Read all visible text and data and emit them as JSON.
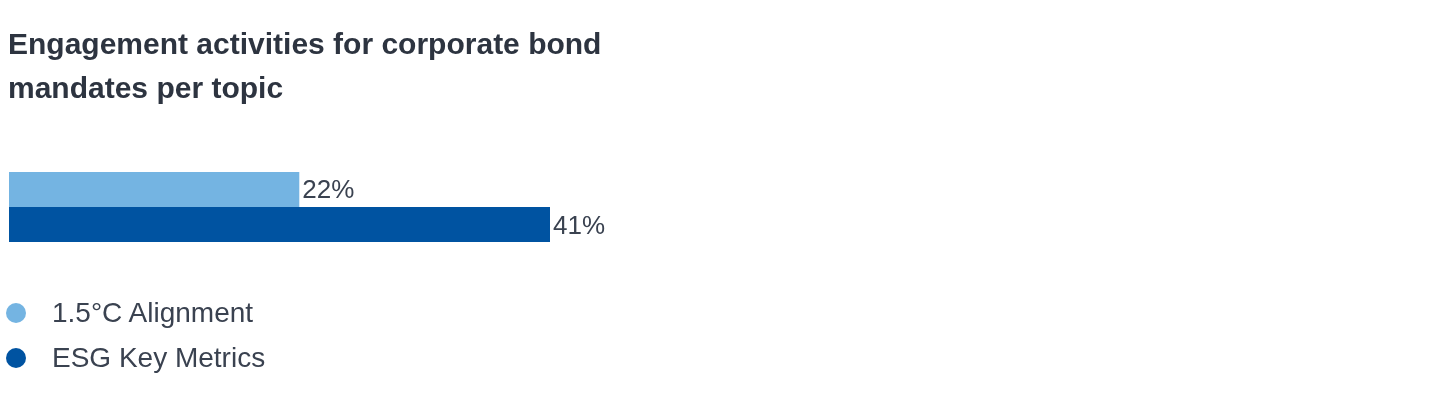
{
  "chart_data": {
    "type": "bar",
    "title": "Engagement activities for corporate bond mandates per topic",
    "orientation": "horizontal",
    "categories": [
      null
    ],
    "legend": "bottom left",
    "marker": "circle",
    "series": [
      {
        "name": "1.5°C Alignment",
        "color": "#74b4e2",
        "values": [
          22
        ],
        "value_labels": [
          "22%"
        ]
      },
      {
        "name": "ESG Key Metrics",
        "color": "#0053a1",
        "values": [
          41
        ],
        "value_labels": [
          "41%"
        ]
      }
    ]
  }
}
